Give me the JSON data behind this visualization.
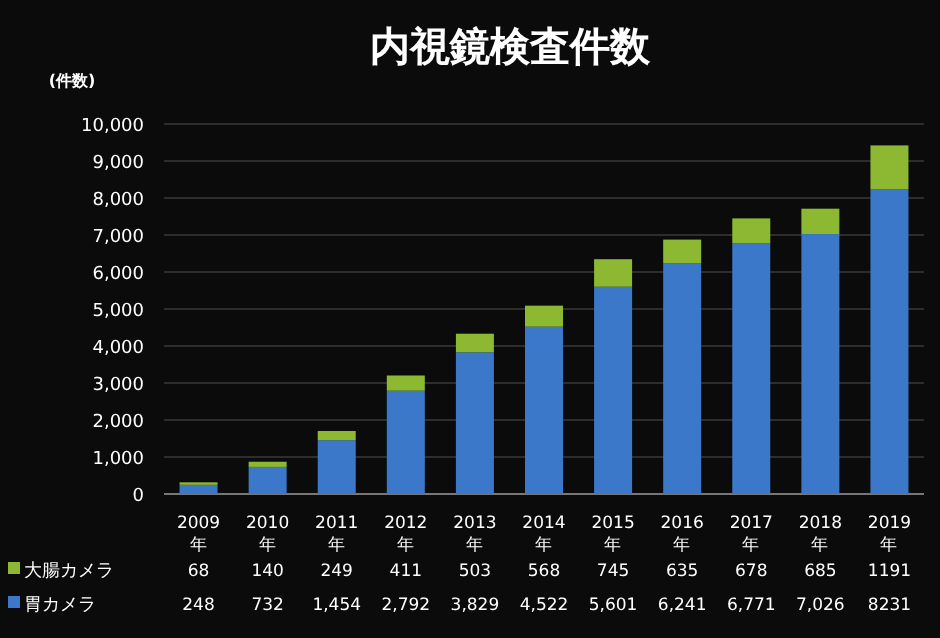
{
  "chart_data": {
    "type": "bar",
    "title": "内視鏡検査件数",
    "ylabel": "(件数)",
    "categories": [
      "2009年",
      "2010年",
      "2011年",
      "2012年",
      "2013年",
      "2014年",
      "2015年",
      "2016年",
      "2017年",
      "2018年",
      "2019年"
    ],
    "series": [
      {
        "name": "胃カメラ",
        "color": "#3b78c9",
        "values": [
          248,
          732,
          1454,
          2792,
          3829,
          4522,
          5601,
          6241,
          6771,
          7026,
          8231
        ],
        "value_labels": [
          "248",
          "732",
          "1,454",
          "2,792",
          "3,829",
          "4,522",
          "5,601",
          "6,241",
          "6,771",
          "7,026",
          "8231"
        ]
      },
      {
        "name": "大腸カメラ",
        "color": "#8cb832",
        "values": [
          68,
          140,
          249,
          411,
          503,
          568,
          745,
          635,
          678,
          685,
          1191
        ],
        "value_labels": [
          "68",
          "140",
          "249",
          "411",
          "503",
          "568",
          "745",
          "635",
          "678",
          "685",
          "1191"
        ]
      }
    ],
    "stacked": true,
    "ylim": [
      0,
      10000
    ],
    "yticks": [
      0,
      {
        "value": 1000,
        "label": "1,000"
      },
      {
        "value": 2000,
        "label": "2,000"
      },
      {
        "value": 3000,
        "label": "3,000"
      },
      {
        "value": 4000,
        "label": "4,000"
      },
      {
        "value": 5000,
        "label": "5,000"
      },
      {
        "value": 6000,
        "label": "6,000"
      },
      {
        "value": 7000,
        "label": "7,000"
      },
      {
        "value": 8000,
        "label": "8,000"
      },
      {
        "value": 9000,
        "label": "9,000"
      },
      {
        "value": 10000,
        "label": "10,000"
      }
    ],
    "grid": true,
    "legend": "bottom"
  }
}
